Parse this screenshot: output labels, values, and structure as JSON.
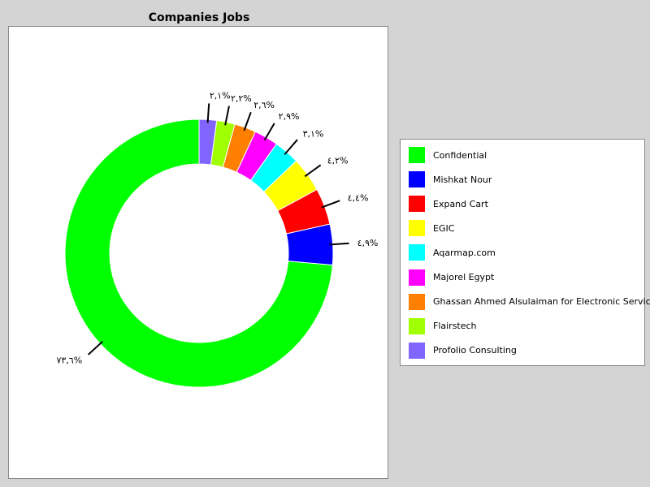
{
  "chart_data": {
    "type": "pie",
    "donut": true,
    "title": "Companies Jobs",
    "legend_position": "right",
    "slices": [
      {
        "label": "Confidential",
        "value": 73.6,
        "percent_label": "٧٣,٦%",
        "color": "#00ff00"
      },
      {
        "label": "Mishkat Nour",
        "value": 4.9,
        "percent_label": "٤,٩%",
        "color": "#0000ff"
      },
      {
        "label": "Expand Cart",
        "value": 4.4,
        "percent_label": "٤,٤%",
        "color": "#ff0000"
      },
      {
        "label": "EGIC",
        "value": 4.2,
        "percent_label": "٤,٢%",
        "color": "#ffff00"
      },
      {
        "label": "Aqarmap.com",
        "value": 3.1,
        "percent_label": "٣,١%",
        "color": "#00ffff"
      },
      {
        "label": "Majorel Egypt",
        "value": 2.9,
        "percent_label": "٢,٩%",
        "color": "#ff00ff"
      },
      {
        "label": "Ghassan Ahmed Alsulaiman for Electronic Services",
        "value": 2.6,
        "percent_label": "٢,٦%",
        "color": "#ff7f00"
      },
      {
        "label": "Flairstech",
        "value": 2.2,
        "percent_label": "٢,٢%",
        "color": "#a0ff00"
      },
      {
        "label": "Profolio Consulting",
        "value": 2.1,
        "percent_label": "٢,١%",
        "color": "#8066ff"
      }
    ]
  }
}
